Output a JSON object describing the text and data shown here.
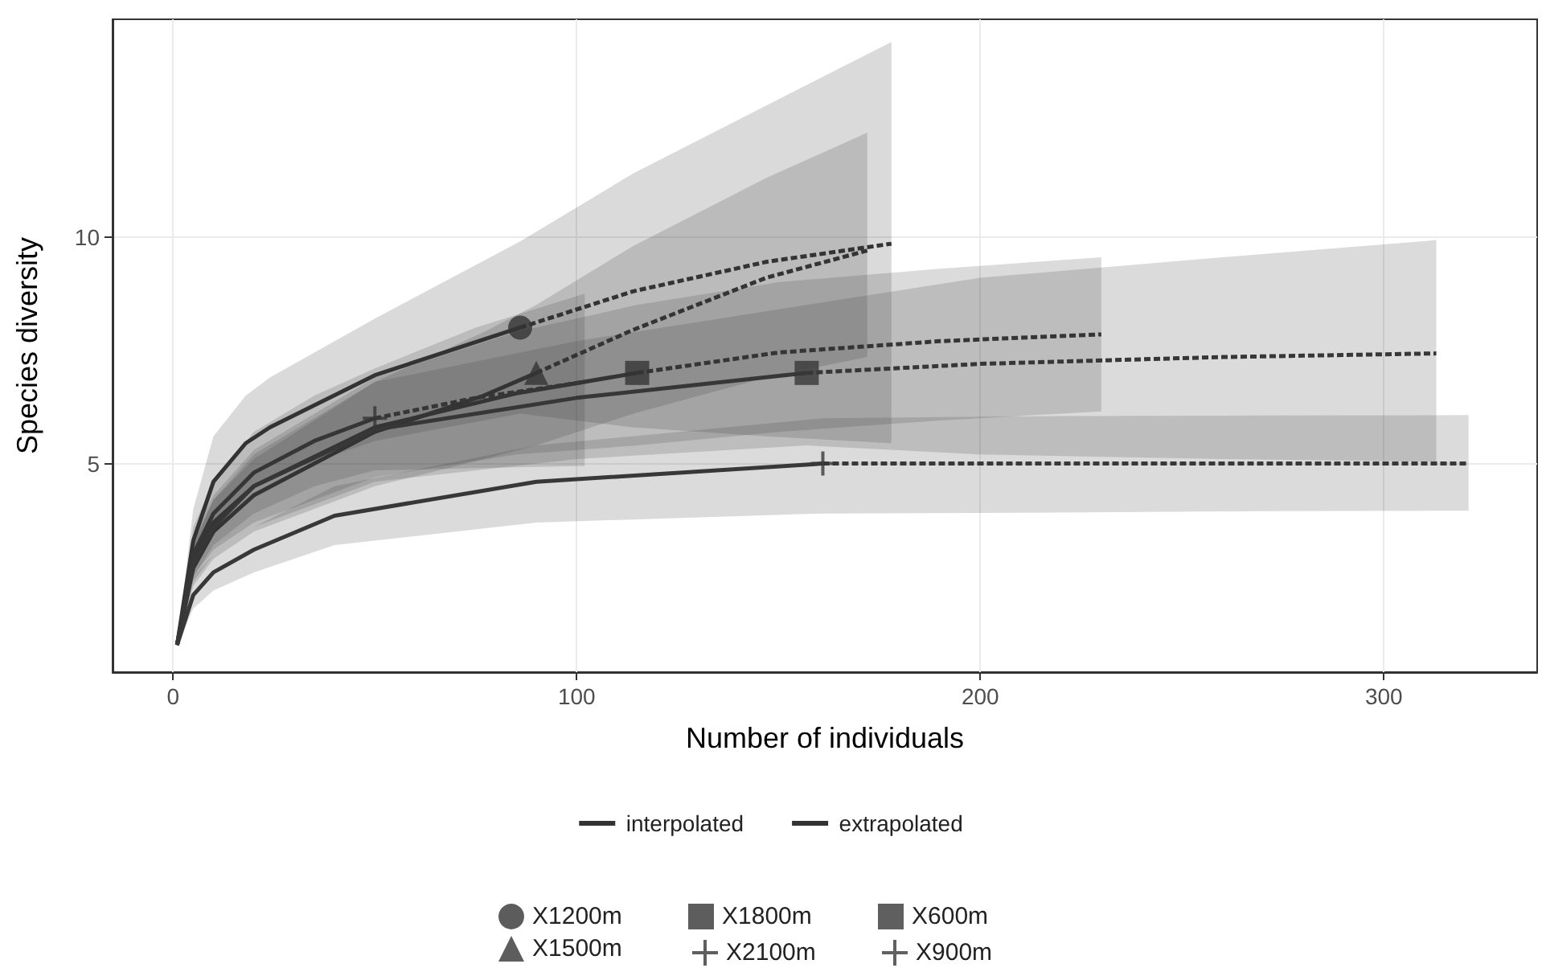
{
  "chart_data": {
    "type": "line",
    "xlabel": "Number of individuals",
    "ylabel": "Species diversity",
    "xlim": [
      -15,
      338
    ],
    "xticks": [
      0,
      100,
      200,
      300
    ],
    "ylim": [
      0.4,
      14.8
    ],
    "yticks": [
      5,
      10
    ],
    "grid": true,
    "legend": "bottom",
    "series": [
      {
        "name": "interpolated",
        "line_style": "solid",
        "color": "#333333",
        "x": [
          1,
          5,
          10,
          18,
          24,
          50,
          86
        ],
        "values": [
          1,
          3.3,
          4.6,
          5.45,
          5.8,
          6.95,
          8
        ],
        "lower": [
          1,
          2.6,
          3.6,
          4.4,
          4.7,
          5.5,
          6.1
        ],
        "upper": [
          1,
          4,
          5.6,
          6.5,
          6.9,
          8.2,
          9.9
        ]
      },
      {
        "name": "extrapolated",
        "line_style": "dashed",
        "color": "#333333",
        "x": [
          86,
          114,
          147,
          178
        ],
        "values": [
          8,
          8.8,
          9.45,
          9.85
        ],
        "lower": [
          6.1,
          5.8,
          5.6,
          5.45
        ],
        "upper": [
          9.9,
          11.4,
          12.9,
          14.3
        ]
      },
      {
        "line_style": "solid",
        "color": "#343434",
        "x": [
          1,
          5,
          10,
          20,
          50,
          77,
          90
        ],
        "values": [
          1,
          2.7,
          3.5,
          4.3,
          5.7,
          6.5,
          7
        ],
        "lower": [
          1,
          2.3,
          2.9,
          3.5,
          4.5,
          5.1,
          5.4
        ],
        "upper": [
          1,
          3.2,
          4.2,
          5.1,
          6.8,
          7.9,
          8.5
        ]
      },
      {
        "line_style": "dashed",
        "color": "#343434",
        "x": [
          90,
          114,
          147,
          172
        ],
        "values": [
          7,
          7.95,
          9.1,
          9.7
        ],
        "lower": [
          5.4,
          6.1,
          6.9,
          7.35
        ],
        "upper": [
          8.5,
          9.8,
          11.3,
          12.3
        ]
      },
      {
        "line_style": "solid",
        "color": "#353535",
        "x": [
          1,
          5,
          10,
          20,
          50,
          85,
          115
        ],
        "values": [
          1,
          2.9,
          3.7,
          4.5,
          5.8,
          6.55,
          7
        ],
        "lower": [
          1,
          2.5,
          3.1,
          3.7,
          4.7,
          5.2,
          5.4
        ],
        "upper": [
          1,
          3.4,
          4.3,
          5.3,
          6.9,
          7.9,
          8.5
        ]
      },
      {
        "line_style": "dashed",
        "color": "#353535",
        "x": [
          115,
          150,
          190,
          230
        ],
        "values": [
          7,
          7.45,
          7.7,
          7.85
        ],
        "lower": [
          5.4,
          5.7,
          5.95,
          6.15
        ],
        "upper": [
          8.5,
          9,
          9.3,
          9.55
        ]
      },
      {
        "line_style": "solid",
        "color": "#363636",
        "x": [
          1,
          5,
          10,
          20,
          35,
          50
        ],
        "values": [
          1,
          3,
          3.9,
          4.8,
          5.5,
          6
        ],
        "lower": [
          1,
          2.5,
          3.2,
          3.9,
          4.5,
          4.85
        ],
        "upper": [
          1,
          3.6,
          4.6,
          5.7,
          6.5,
          7.1
        ]
      },
      {
        "line_style": "dashed",
        "color": "#363636",
        "x": [
          50,
          75,
          102
        ],
        "values": [
          6,
          6.45,
          6.8
        ],
        "lower": [
          4.85,
          4.9,
          4.95
        ],
        "upper": [
          7.1,
          8,
          8.75
        ]
      },
      {
        "line_style": "solid",
        "color": "#373737",
        "x": [
          1,
          5,
          10,
          20,
          50,
          100,
          157
        ],
        "values": [
          1,
          2.8,
          3.6,
          4.5,
          5.75,
          6.45,
          7
        ],
        "lower": [
          1,
          2.4,
          3,
          3.6,
          4.6,
          5.1,
          5.4
        ],
        "upper": [
          1,
          3.3,
          4.2,
          5.2,
          6.8,
          7.7,
          8.5
        ]
      },
      {
        "line_style": "dashed",
        "color": "#373737",
        "x": [
          157,
          200,
          260,
          313
        ],
        "values": [
          7,
          7.2,
          7.35,
          7.43
        ],
        "lower": [
          5.4,
          5.2,
          5.1,
          5.04
        ],
        "upper": [
          8.5,
          9.1,
          9.55,
          9.93
        ]
      },
      {
        "line_style": "solid",
        "color": "#383838",
        "x": [
          1,
          5,
          10,
          20,
          40,
          90,
          161
        ],
        "values": [
          1,
          2.1,
          2.6,
          3.1,
          3.85,
          4.6,
          5
        ],
        "lower": [
          1,
          1.8,
          2.2,
          2.6,
          3.2,
          3.7,
          3.9
        ],
        "upper": [
          1,
          2.5,
          3,
          3.6,
          4.5,
          5.4,
          6
        ]
      },
      {
        "line_style": "dashed",
        "color": "#383838",
        "x": [
          161,
          220,
          270,
          321
        ],
        "values": [
          5,
          5,
          5,
          5
        ],
        "lower": [
          3.9,
          3.92,
          3.95,
          3.96
        ],
        "upper": [
          6,
          6.05,
          6.06,
          6.07
        ]
      },
      {
        "name": "X1200m",
        "type": "scatter",
        "marker": "circle",
        "color": "#333333",
        "x": [
          86
        ],
        "values": [
          8
        ]
      },
      {
        "name": "X1500m",
        "type": "scatter",
        "marker": "triangle",
        "color": "#343434",
        "x": [
          90
        ],
        "values": [
          7
        ]
      },
      {
        "name": "X1800m",
        "type": "scatter",
        "marker": "square",
        "color": "#353535",
        "x": [
          115
        ],
        "values": [
          7
        ]
      },
      {
        "name": "X2100m",
        "type": "scatter",
        "marker": "cross",
        "color": "#363636",
        "x": [
          50
        ],
        "values": [
          6
        ]
      },
      {
        "name": "X600m",
        "type": "scatter",
        "marker": "square",
        "color": "#373737",
        "x": [
          157
        ],
        "values": [
          7
        ]
      },
      {
        "name": "X900m",
        "type": "scatter",
        "marker": "cross",
        "color": "#383838",
        "x": [
          161
        ],
        "values": [
          5
        ]
      }
    ]
  }
}
